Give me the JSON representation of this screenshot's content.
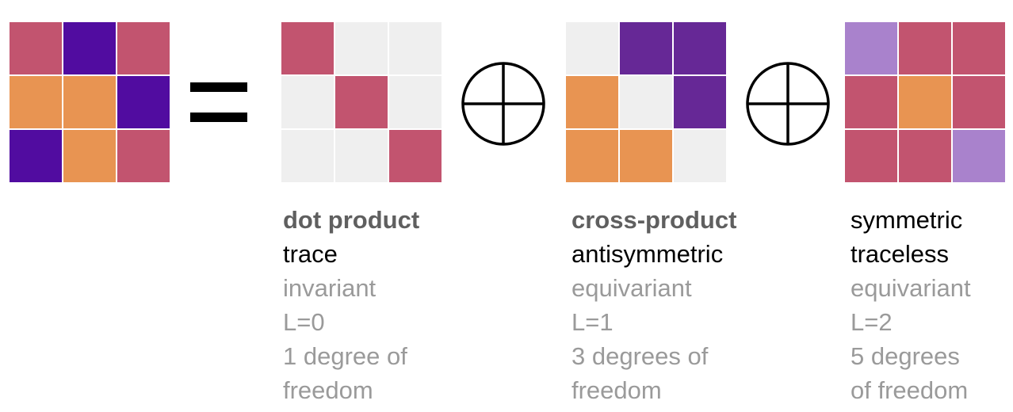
{
  "colors": {
    "pink": "#c2546f",
    "orange": "#e89452",
    "purple_deep": "#510ca0",
    "purple_mid": "#662896",
    "lavender": "#a982cc",
    "empty": "#efefef"
  },
  "matrices": {
    "full": [
      [
        "pink",
        "purple_deep",
        "pink"
      ],
      [
        "orange",
        "orange",
        "purple_deep"
      ],
      [
        "purple_deep",
        "orange",
        "pink"
      ]
    ],
    "dot": [
      [
        "pink",
        "empty",
        "empty"
      ],
      [
        "empty",
        "pink",
        "empty"
      ],
      [
        "empty",
        "empty",
        "pink"
      ]
    ],
    "cross": [
      [
        "empty",
        "purple_mid",
        "purple_mid"
      ],
      [
        "orange",
        "empty",
        "purple_mid"
      ],
      [
        "orange",
        "orange",
        "empty"
      ]
    ],
    "sym": [
      [
        "lavender",
        "pink",
        "pink"
      ],
      [
        "pink",
        "orange",
        "pink"
      ],
      [
        "pink",
        "pink",
        "lavender"
      ]
    ]
  },
  "labels": {
    "dot": {
      "title": "dot product",
      "subtitle": "trace",
      "kind": "invariant",
      "order": "L=0",
      "dof_line1": "1 degree of",
      "dof_line2": "freedom"
    },
    "cross": {
      "title": "cross-product",
      "subtitle": "antisymmetric",
      "kind": "equivariant",
      "order": "L=1",
      "dof_line1": "3 degrees of",
      "dof_line2": "freedom"
    },
    "sym": {
      "title": "symmetric",
      "subtitle": "traceless",
      "kind": "equivariant",
      "order": "L=2",
      "dof_line1": "5 degrees",
      "dof_line2": "of freedom"
    }
  },
  "icons": {
    "equals": "equals-sign-icon",
    "oplus": "direct-sum-icon"
  }
}
